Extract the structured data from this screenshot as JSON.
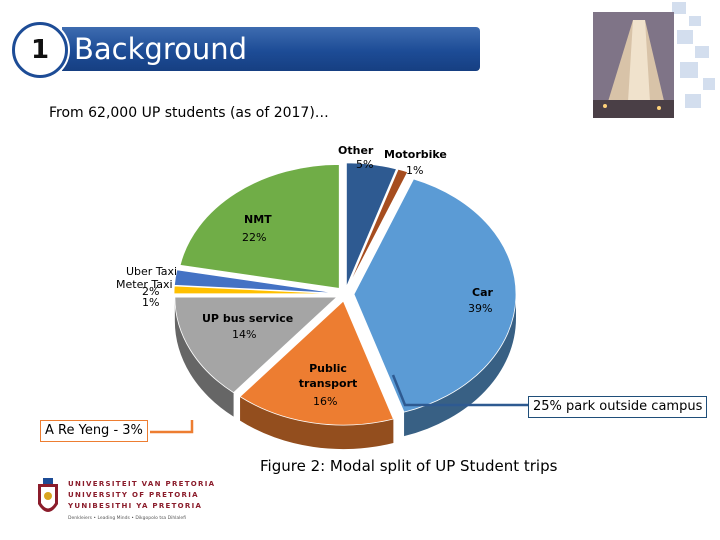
{
  "slide": {
    "number": "1",
    "title": "Background",
    "intro": "From 62,000 UP students (as of 2017)…",
    "caption": "Figure 2: Modal split of UP Student trips",
    "callout_right": "25% park outside campus",
    "callout_left": "A Re Yeng - 3%"
  },
  "logo": {
    "line1": "UNIVERSITEIT VAN PRETORIA",
    "line2": "UNIVERSITY OF PRETORIA",
    "line3": "YUNIBESITHI YA PRETORIA",
    "tagline": "Denkleiers • Leading Minds • Dikgopolo tsa Dihlalefi"
  },
  "chart_data": {
    "type": "pie",
    "title": "",
    "slices": [
      {
        "label": "Other",
        "value": 5,
        "pct_label": "5%",
        "color": "#2e5a91"
      },
      {
        "label": "Motorbike",
        "value": 1,
        "pct_label": "1%",
        "color": "#a64d1f"
      },
      {
        "label": "Car",
        "value": 39,
        "pct_label": "39%",
        "color": "#5b9bd5"
      },
      {
        "label": "Public transport",
        "value": 16,
        "pct_label": "16%",
        "color": "#ed7d31"
      },
      {
        "label": "UP bus service",
        "value": 14,
        "pct_label": "14%",
        "color": "#a5a5a5"
      },
      {
        "label": "Meter Taxi",
        "value": 1,
        "pct_label": "1%",
        "color": "#ffc000"
      },
      {
        "label": "Uber Taxi",
        "value": 2,
        "pct_label": "2%",
        "color": "#4472c4"
      },
      {
        "label": "NMT",
        "value": 22,
        "pct_label": "22%",
        "color": "#70ad47"
      }
    ]
  }
}
